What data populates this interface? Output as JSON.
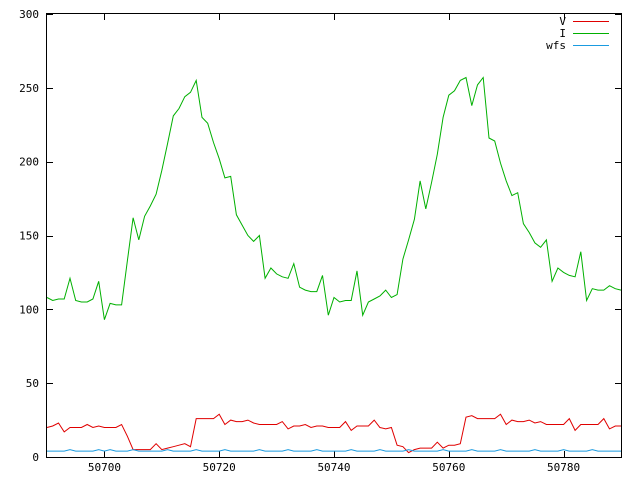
{
  "chart_data": {
    "type": "line",
    "title": "",
    "xlabel": "",
    "ylabel": "",
    "xlim": [
      50690,
      50790
    ],
    "ylim": [
      0,
      300
    ],
    "x_ticks": [
      50700,
      50720,
      50740,
      50760,
      50780
    ],
    "y_ticks": [
      0,
      50,
      100,
      150,
      200,
      250,
      300
    ],
    "grid": false,
    "legend_position": "top-right",
    "x": [
      50690,
      50691,
      50692,
      50693,
      50694,
      50695,
      50696,
      50697,
      50698,
      50699,
      50700,
      50701,
      50702,
      50703,
      50704,
      50705,
      50706,
      50707,
      50708,
      50709,
      50710,
      50711,
      50712,
      50713,
      50714,
      50715,
      50716,
      50717,
      50718,
      50719,
      50720,
      50721,
      50722,
      50723,
      50724,
      50725,
      50726,
      50727,
      50728,
      50729,
      50730,
      50731,
      50732,
      50733,
      50734,
      50735,
      50736,
      50737,
      50738,
      50739,
      50740,
      50741,
      50742,
      50743,
      50744,
      50745,
      50746,
      50747,
      50748,
      50749,
      50750,
      50751,
      50752,
      50753,
      50754,
      50755,
      50756,
      50757,
      50758,
      50759,
      50760,
      50761,
      50762,
      50763,
      50764,
      50765,
      50766,
      50767,
      50768,
      50769,
      50770,
      50771,
      50772,
      50773,
      50774,
      50775,
      50776,
      50777,
      50778,
      50779,
      50780,
      50781,
      50782,
      50783,
      50784,
      50785,
      50786,
      50787,
      50788,
      50789,
      50790
    ],
    "series": [
      {
        "name": "V",
        "color": "#e00000",
        "values": [
          20,
          21,
          23,
          17,
          20,
          20,
          20,
          22,
          20,
          21,
          20,
          20,
          20,
          22,
          14,
          5,
          5,
          5,
          5,
          9,
          5,
          6,
          7,
          8,
          9,
          7,
          26,
          26,
          26,
          26,
          29,
          22,
          25,
          24,
          24,
          25,
          23,
          22,
          22,
          22,
          22,
          24,
          19,
          21,
          21,
          22,
          20,
          21,
          21,
          20,
          20,
          20,
          24,
          18,
          21,
          21,
          21,
          25,
          20,
          19,
          20,
          8,
          7,
          3,
          5,
          6,
          6,
          6,
          10,
          6,
          8,
          8,
          9,
          27,
          28,
          26,
          26,
          26,
          26,
          29,
          22,
          25,
          24,
          24,
          25,
          23,
          24,
          22,
          22,
          22,
          22,
          26,
          18,
          22,
          22,
          22,
          22,
          26,
          19,
          21,
          21
        ]
      },
      {
        "name": "I",
        "color": "#00b000",
        "values": [
          108,
          106,
          107,
          107,
          121,
          106,
          105,
          105,
          107,
          119,
          93,
          104,
          103,
          103,
          133,
          162,
          147,
          163,
          170,
          178,
          194,
          212,
          231,
          236,
          244,
          247,
          255,
          230,
          226,
          213,
          202,
          189,
          190,
          164,
          157,
          150,
          146,
          150,
          121,
          128,
          124,
          122,
          121,
          131,
          115,
          113,
          112,
          112,
          123,
          96,
          108,
          105,
          106,
          106,
          126,
          96,
          105,
          107,
          109,
          113,
          108,
          110,
          134,
          147,
          161,
          187,
          168,
          186,
          205,
          230,
          245,
          248,
          255,
          257,
          238,
          252,
          257,
          216,
          214,
          199,
          187,
          177,
          179,
          158,
          152,
          145,
          142,
          147,
          119,
          128,
          125,
          123,
          122,
          139,
          106,
          114,
          113,
          113,
          116,
          114,
          113
        ]
      },
      {
        "name": "wfs",
        "color": "#1a9be0",
        "values": [
          4,
          4,
          4,
          4,
          5,
          4,
          4,
          4,
          4,
          5,
          4,
          5,
          4,
          4,
          4,
          5,
          4,
          4,
          4,
          4,
          4,
          5,
          4,
          4,
          4,
          4,
          5,
          4,
          4,
          4,
          4,
          5,
          4,
          4,
          4,
          4,
          4,
          5,
          4,
          4,
          4,
          4,
          5,
          4,
          4,
          4,
          4,
          5,
          4,
          4,
          4,
          4,
          4,
          5,
          4,
          4,
          4,
          4,
          5,
          4,
          4,
          4,
          4,
          5,
          4,
          4,
          4,
          4,
          4,
          5,
          4,
          4,
          4,
          4,
          5,
          4,
          4,
          4,
          4,
          5,
          4,
          4,
          4,
          4,
          4,
          5,
          4,
          4,
          4,
          4,
          5,
          4,
          4,
          4,
          4,
          5,
          4,
          4,
          4,
          4,
          4
        ]
      }
    ]
  }
}
